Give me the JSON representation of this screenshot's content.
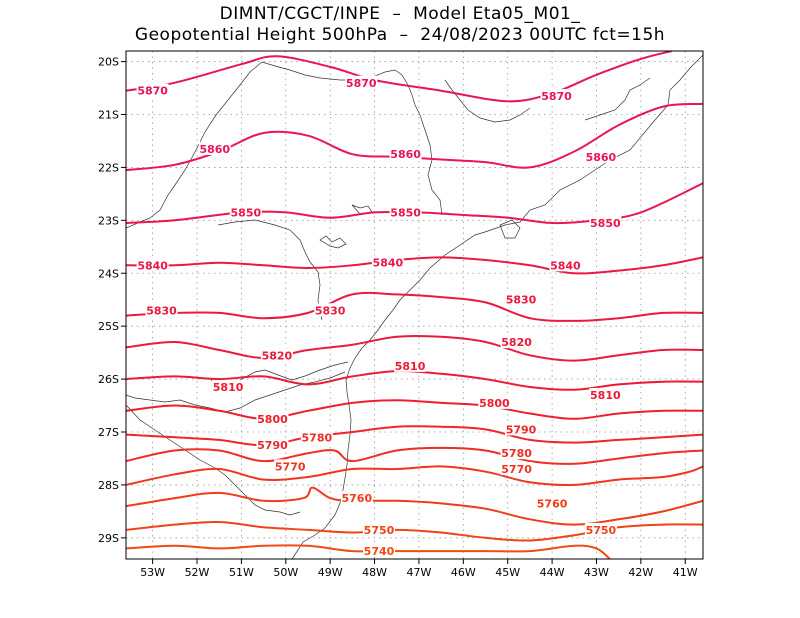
{
  "header": {
    "line1": "DIMNT/CGCT/INPE  –  Model Eta05_M01_",
    "line2": "Geopotential Height 500hPa  –  24/08/2023 00UTC fct=15h"
  },
  "map": {
    "lon_range": [
      -53.6,
      -40.6
    ],
    "lat_range": [
      -29.4,
      -19.8
    ],
    "lat_ticks": [
      {
        "value": -20,
        "label": "20S"
      },
      {
        "value": -21,
        "label": "21S"
      },
      {
        "value": -22,
        "label": "22S"
      },
      {
        "value": -23,
        "label": "23S"
      },
      {
        "value": -24,
        "label": "24S"
      },
      {
        "value": -25,
        "label": "25S"
      },
      {
        "value": -26,
        "label": "26S"
      },
      {
        "value": -27,
        "label": "27S"
      },
      {
        "value": -28,
        "label": "28S"
      },
      {
        "value": -29,
        "label": "29S"
      }
    ],
    "lon_ticks": [
      {
        "value": -53,
        "label": "53W"
      },
      {
        "value": -52,
        "label": "52W"
      },
      {
        "value": -51,
        "label": "51W"
      },
      {
        "value": -50,
        "label": "50W"
      },
      {
        "value": -49,
        "label": "49W"
      },
      {
        "value": -48,
        "label": "48W"
      },
      {
        "value": -47,
        "label": "47W"
      },
      {
        "value": -46,
        "label": "46W"
      },
      {
        "value": -45,
        "label": "45W"
      },
      {
        "value": -44,
        "label": "44W"
      },
      {
        "value": -43,
        "label": "43W"
      },
      {
        "value": -42,
        "label": "42W"
      },
      {
        "value": -41,
        "label": "41W"
      }
    ],
    "colors": {
      "high": "#e8145a",
      "mid": "#ee1a30",
      "low": "#f24a10",
      "boundary": "#333333",
      "grid": "#999999"
    }
  },
  "chart_data": {
    "type": "contour",
    "variable": "Geopotential Height 500hPa (gpm)",
    "contour_interval": 10,
    "contours": [
      {
        "level": 5870,
        "points": [
          [
            -53.6,
            -20.55
          ],
          [
            -52.5,
            -20.4
          ],
          [
            -51.0,
            -20.05
          ],
          [
            -50.2,
            -19.9
          ],
          [
            -49.0,
            -20.1
          ],
          [
            -48.0,
            -20.35
          ],
          [
            -46.5,
            -20.55
          ],
          [
            -45.0,
            -20.75
          ],
          [
            -44.0,
            -20.6
          ],
          [
            -43.0,
            -20.25
          ],
          [
            -42.0,
            -19.95
          ],
          [
            -41.3,
            -19.8
          ]
        ],
        "labels": [
          {
            "text": "5870",
            "lon": -53.0,
            "lat": -20.55
          },
          {
            "text": "5870",
            "lon": -48.3,
            "lat": -20.4
          },
          {
            "text": "5870",
            "lon": -43.9,
            "lat": -20.65
          }
        ]
      },
      {
        "level": 5860,
        "points": [
          [
            -53.6,
            -22.05
          ],
          [
            -52.5,
            -21.95
          ],
          [
            -51.5,
            -21.7
          ],
          [
            -50.5,
            -21.35
          ],
          [
            -49.5,
            -21.4
          ],
          [
            -48.5,
            -21.75
          ],
          [
            -47.5,
            -21.8
          ],
          [
            -46.5,
            -21.85
          ],
          [
            -45.5,
            -21.9
          ],
          [
            -44.5,
            -22.0
          ],
          [
            -43.5,
            -21.7
          ],
          [
            -42.5,
            -21.2
          ],
          [
            -41.5,
            -20.85
          ],
          [
            -40.6,
            -20.8
          ]
        ],
        "labels": [
          {
            "text": "5860",
            "lon": -51.6,
            "lat": -21.65
          },
          {
            "text": "5860",
            "lon": -47.3,
            "lat": -21.75
          },
          {
            "text": "5860",
            "lon": -42.9,
            "lat": -21.8
          }
        ]
      },
      {
        "level": 5850,
        "points": [
          [
            -53.6,
            -23.05
          ],
          [
            -52.5,
            -23.0
          ],
          [
            -51.0,
            -22.85
          ],
          [
            -50.0,
            -22.85
          ],
          [
            -49.0,
            -22.95
          ],
          [
            -48.0,
            -22.85
          ],
          [
            -47.0,
            -22.85
          ],
          [
            -46.0,
            -22.9
          ],
          [
            -45.0,
            -22.95
          ],
          [
            -44.0,
            -23.05
          ],
          [
            -43.0,
            -23.0
          ],
          [
            -42.0,
            -22.85
          ],
          [
            -40.6,
            -22.3
          ]
        ],
        "labels": [
          {
            "text": "5850",
            "lon": -50.9,
            "lat": -22.85
          },
          {
            "text": "5850",
            "lon": -47.3,
            "lat": -22.85
          },
          {
            "text": "5850",
            "lon": -42.8,
            "lat": -23.05
          }
        ]
      },
      {
        "level": 5840,
        "points": [
          [
            -53.6,
            -23.85
          ],
          [
            -52.5,
            -23.85
          ],
          [
            -51.5,
            -23.8
          ],
          [
            -50.5,
            -23.85
          ],
          [
            -49.5,
            -23.9
          ],
          [
            -48.5,
            -23.85
          ],
          [
            -47.5,
            -23.75
          ],
          [
            -46.5,
            -23.7
          ],
          [
            -45.5,
            -23.75
          ],
          [
            -44.5,
            -23.85
          ],
          [
            -43.5,
            -24.0
          ],
          [
            -42.5,
            -23.95
          ],
          [
            -41.5,
            -23.85
          ],
          [
            -40.6,
            -23.7
          ]
        ],
        "labels": [
          {
            "text": "5840",
            "lon": -53.0,
            "lat": -23.85
          },
          {
            "text": "5840",
            "lon": -47.7,
            "lat": -23.8
          },
          {
            "text": "5840",
            "lon": -43.7,
            "lat": -23.85
          }
        ]
      },
      {
        "level": 5830,
        "points": [
          [
            -53.6,
            -24.8
          ],
          [
            -52.5,
            -24.75
          ],
          [
            -51.5,
            -24.75
          ],
          [
            -50.5,
            -24.85
          ],
          [
            -49.5,
            -24.75
          ],
          [
            -48.5,
            -24.4
          ],
          [
            -47.5,
            -24.4
          ],
          [
            -46.5,
            -24.45
          ],
          [
            -45.5,
            -24.55
          ],
          [
            -44.5,
            -24.85
          ],
          [
            -43.5,
            -24.9
          ],
          [
            -42.5,
            -24.85
          ],
          [
            -41.5,
            -24.75
          ],
          [
            -40.6,
            -24.75
          ]
        ],
        "labels": [
          {
            "text": "5830",
            "lon": -52.8,
            "lat": -24.7
          },
          {
            "text": "5830",
            "lon": -49.0,
            "lat": -24.7
          },
          {
            "text": "5830",
            "lon": -44.7,
            "lat": -24.5
          }
        ]
      },
      {
        "level": 5820,
        "points": [
          [
            -53.6,
            -25.4
          ],
          [
            -52.5,
            -25.3
          ],
          [
            -51.5,
            -25.45
          ],
          [
            -50.5,
            -25.6
          ],
          [
            -49.5,
            -25.45
          ],
          [
            -48.5,
            -25.35
          ],
          [
            -47.5,
            -25.2
          ],
          [
            -46.5,
            -25.2
          ],
          [
            -45.5,
            -25.3
          ],
          [
            -44.5,
            -25.55
          ],
          [
            -43.5,
            -25.65
          ],
          [
            -42.5,
            -25.55
          ],
          [
            -41.5,
            -25.45
          ],
          [
            -40.6,
            -25.45
          ]
        ],
        "labels": [
          {
            "text": "5820",
            "lon": -50.2,
            "lat": -25.55
          },
          {
            "text": "5820",
            "lon": -44.8,
            "lat": -25.3
          }
        ]
      },
      {
        "level": 5810,
        "points": [
          [
            -53.6,
            -26.0
          ],
          [
            -52.5,
            -25.95
          ],
          [
            -51.5,
            -26.0
          ],
          [
            -50.5,
            -25.95
          ],
          [
            -49.5,
            -26.1
          ],
          [
            -48.5,
            -25.95
          ],
          [
            -47.5,
            -25.85
          ],
          [
            -46.5,
            -25.9
          ],
          [
            -45.5,
            -26.0
          ],
          [
            -44.5,
            -26.15
          ],
          [
            -43.5,
            -26.2
          ],
          [
            -42.5,
            -26.1
          ],
          [
            -41.5,
            -26.05
          ],
          [
            -40.6,
            -26.05
          ]
        ],
        "labels": [
          {
            "text": "5810",
            "lon": -51.3,
            "lat": -26.15
          },
          {
            "text": "5810",
            "lon": -47.2,
            "lat": -25.75
          },
          {
            "text": "5810",
            "lon": -42.8,
            "lat": -26.3
          }
        ]
      },
      {
        "level": 5800,
        "points": [
          [
            -53.6,
            -26.6
          ],
          [
            -52.5,
            -26.5
          ],
          [
            -51.5,
            -26.6
          ],
          [
            -50.5,
            -26.75
          ],
          [
            -49.5,
            -26.6
          ],
          [
            -48.5,
            -26.45
          ],
          [
            -47.5,
            -26.4
          ],
          [
            -46.5,
            -26.45
          ],
          [
            -45.5,
            -26.5
          ],
          [
            -44.5,
            -26.65
          ],
          [
            -43.5,
            -26.75
          ],
          [
            -42.5,
            -26.65
          ],
          [
            -41.5,
            -26.6
          ],
          [
            -40.6,
            -26.6
          ]
        ],
        "labels": [
          {
            "text": "5800",
            "lon": -50.3,
            "lat": -26.75
          },
          {
            "text": "5800",
            "lon": -45.3,
            "lat": -26.45
          }
        ]
      },
      {
        "level": 5790,
        "points": [
          [
            -53.6,
            -27.05
          ],
          [
            -52.5,
            -27.1
          ],
          [
            -51.5,
            -27.15
          ],
          [
            -50.5,
            -27.25
          ],
          [
            -49.5,
            -27.1
          ],
          [
            -48.5,
            -27.0
          ],
          [
            -47.5,
            -26.9
          ],
          [
            -46.5,
            -26.9
          ],
          [
            -45.5,
            -26.95
          ],
          [
            -44.5,
            -27.15
          ],
          [
            -43.5,
            -27.2
          ],
          [
            -42.5,
            -27.15
          ],
          [
            -41.5,
            -27.1
          ],
          [
            -40.6,
            -27.05
          ]
        ],
        "labels": [
          {
            "text": "5790",
            "lon": -50.3,
            "lat": -27.25
          },
          {
            "text": "5790",
            "lon": -44.7,
            "lat": -26.95
          }
        ]
      },
      {
        "level": 5780,
        "points": [
          [
            -53.6,
            -27.55
          ],
          [
            -52.5,
            -27.35
          ],
          [
            -51.5,
            -27.35
          ],
          [
            -50.5,
            -27.55
          ],
          [
            -49.5,
            -27.4
          ],
          [
            -48.9,
            -27.35
          ],
          [
            -48.5,
            -27.55
          ],
          [
            -47.5,
            -27.35
          ],
          [
            -46.5,
            -27.3
          ],
          [
            -45.5,
            -27.35
          ],
          [
            -44.5,
            -27.55
          ],
          [
            -43.5,
            -27.6
          ],
          [
            -42.5,
            -27.5
          ],
          [
            -41.5,
            -27.4
          ],
          [
            -40.6,
            -27.35
          ]
        ],
        "labels": [
          {
            "text": "5780",
            "lon": -49.3,
            "lat": -27.1
          },
          {
            "text": "5780",
            "lon": -44.8,
            "lat": -27.4
          }
        ]
      },
      {
        "level": 5770,
        "points": [
          [
            -53.6,
            -28.0
          ],
          [
            -52.5,
            -27.8
          ],
          [
            -51.5,
            -27.7
          ],
          [
            -50.5,
            -27.9
          ],
          [
            -49.5,
            -27.85
          ],
          [
            -48.5,
            -27.7
          ],
          [
            -47.5,
            -27.7
          ],
          [
            -46.5,
            -27.65
          ],
          [
            -45.5,
            -27.75
          ],
          [
            -44.5,
            -27.95
          ],
          [
            -43.5,
            -28.0
          ],
          [
            -42.5,
            -27.9
          ],
          [
            -41.5,
            -27.85
          ],
          [
            -40.9,
            -27.75
          ],
          [
            -40.6,
            -27.65
          ]
        ],
        "labels": [
          {
            "text": "5770",
            "lon": -49.9,
            "lat": -27.65
          },
          {
            "text": "5770",
            "lon": -44.8,
            "lat": -27.7
          }
        ]
      },
      {
        "level": 5760,
        "points": [
          [
            -53.6,
            -28.4
          ],
          [
            -52.5,
            -28.25
          ],
          [
            -51.5,
            -28.15
          ],
          [
            -50.5,
            -28.3
          ],
          [
            -49.6,
            -28.25
          ],
          [
            -49.4,
            -28.05
          ],
          [
            -49.0,
            -28.25
          ],
          [
            -48.5,
            -28.3
          ],
          [
            -47.5,
            -28.3
          ],
          [
            -46.5,
            -28.35
          ],
          [
            -45.5,
            -28.45
          ],
          [
            -44.5,
            -28.65
          ],
          [
            -43.5,
            -28.75
          ],
          [
            -42.5,
            -28.65
          ],
          [
            -41.5,
            -28.5
          ],
          [
            -40.6,
            -28.3
          ]
        ],
        "labels": [
          {
            "text": "5760",
            "lon": -48.4,
            "lat": -28.25
          },
          {
            "text": "5760",
            "lon": -44.0,
            "lat": -28.35
          }
        ]
      },
      {
        "level": 5750,
        "points": [
          [
            -53.6,
            -28.85
          ],
          [
            -52.5,
            -28.75
          ],
          [
            -51.5,
            -28.7
          ],
          [
            -50.5,
            -28.8
          ],
          [
            -49.5,
            -28.85
          ],
          [
            -48.5,
            -28.9
          ],
          [
            -47.5,
            -28.85
          ],
          [
            -46.5,
            -28.9
          ],
          [
            -45.5,
            -29.0
          ],
          [
            -44.5,
            -29.05
          ],
          [
            -43.5,
            -28.95
          ],
          [
            -42.5,
            -28.8
          ],
          [
            -41.5,
            -28.75
          ],
          [
            -40.6,
            -28.75
          ]
        ],
        "labels": [
          {
            "text": "5750",
            "lon": -47.9,
            "lat": -28.85
          },
          {
            "text": "5750",
            "lon": -42.9,
            "lat": -28.85
          }
        ]
      },
      {
        "level": 5740,
        "points": [
          [
            -53.6,
            -29.2
          ],
          [
            -52.5,
            -29.15
          ],
          [
            -51.5,
            -29.2
          ],
          [
            -50.5,
            -29.15
          ],
          [
            -49.5,
            -29.15
          ],
          [
            -48.5,
            -29.25
          ],
          [
            -47.5,
            -29.25
          ],
          [
            -46.5,
            -29.25
          ],
          [
            -45.5,
            -29.25
          ],
          [
            -44.5,
            -29.25
          ],
          [
            -43.5,
            -29.15
          ],
          [
            -43.0,
            -29.2
          ],
          [
            -42.7,
            -29.4
          ]
        ],
        "labels": [
          {
            "text": "5740",
            "lon": -47.9,
            "lat": -29.25
          }
        ]
      }
    ]
  }
}
